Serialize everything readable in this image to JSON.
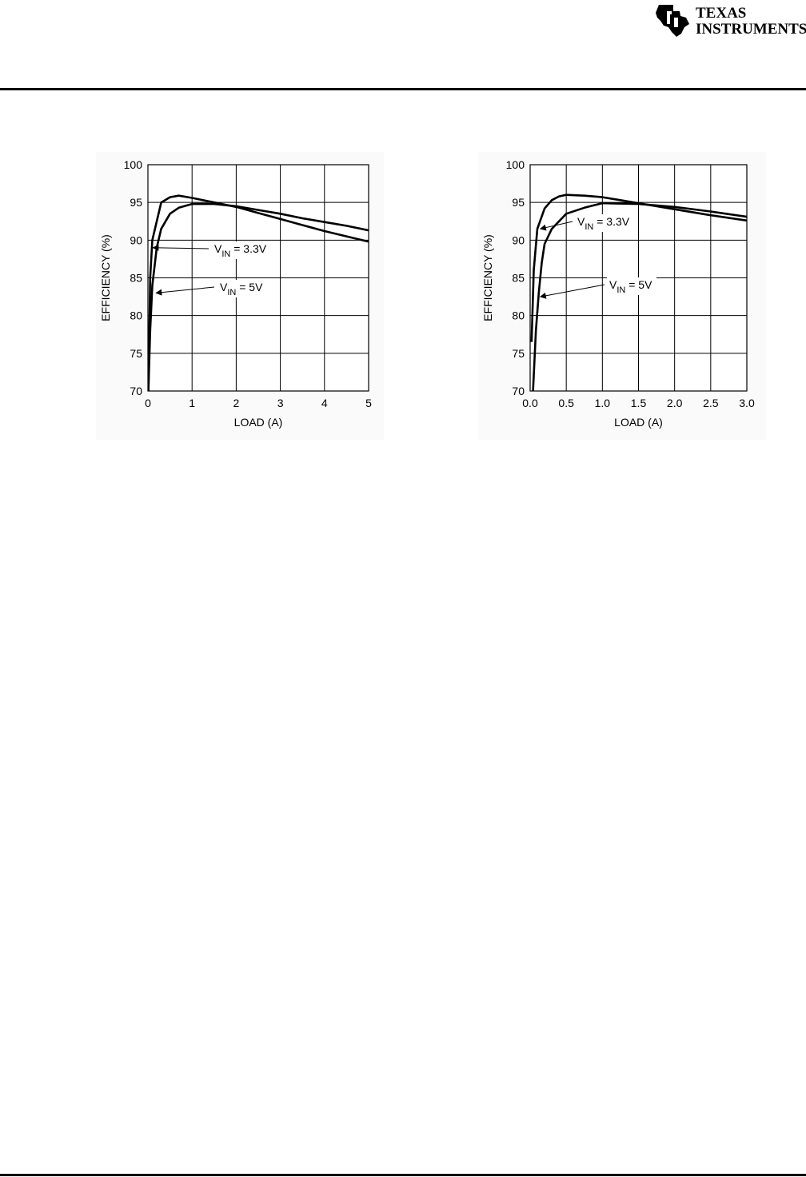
{
  "header": {
    "logo_line1": "Texas",
    "logo_line2": "Instruments",
    "logo_line1_display": "TEXAS",
    "logo_line2_display": "INSTRUMENTS"
  },
  "chart_data": [
    {
      "type": "line",
      "title": "",
      "xlabel": "LOAD (A)",
      "ylabel": "EFFICIENCY (%)",
      "xlim": [
        0,
        5
      ],
      "ylim": [
        70,
        100
      ],
      "x_ticks": [
        0,
        1,
        2,
        3,
        4,
        5
      ],
      "x_tick_labels": [
        "0",
        "1",
        "2",
        "3",
        "4",
        "5"
      ],
      "y_ticks": [
        70,
        75,
        80,
        85,
        90,
        95,
        100
      ],
      "y_tick_labels": [
        "70",
        "75",
        "80",
        "85",
        "90",
        "95",
        "100"
      ],
      "grid": true,
      "series": [
        {
          "name": "VIN = 3.3V",
          "annotation": {
            "main": "V",
            "sub": "IN",
            "rest": " = 3.3V",
            "x": 0.08,
            "y": 89
          },
          "x": [
            0.01,
            0.05,
            0.1,
            0.3,
            0.5,
            0.7,
            1.0,
            1.5,
            2.0,
            2.5,
            3.0,
            3.5,
            4.0,
            4.5,
            5.0
          ],
          "y": [
            70,
            85,
            90,
            95,
            95.7,
            95.9,
            95.6,
            95.0,
            94.4,
            93.6,
            92.8,
            92.0,
            91.2,
            90.5,
            89.8
          ]
        },
        {
          "name": "VIN = 5V",
          "annotation": {
            "main": "V",
            "sub": "IN",
            "rest": " = 5V",
            "x": 0.15,
            "y": 83
          },
          "x": [
            0.01,
            0.05,
            0.1,
            0.2,
            0.3,
            0.5,
            0.7,
            1.0,
            1.5,
            2.0,
            2.5,
            3.0,
            3.5,
            4.0,
            4.5,
            5.0
          ],
          "y": [
            70,
            78,
            84,
            89,
            91.5,
            93.5,
            94.3,
            94.8,
            94.8,
            94.5,
            94.0,
            93.5,
            92.9,
            92.4,
            91.9,
            91.3
          ]
        }
      ]
    },
    {
      "type": "line",
      "title": "",
      "xlabel": "LOAD (A)",
      "ylabel": "EFFICIENCY (%)",
      "xlim": [
        0,
        3.0
      ],
      "ylim": [
        70,
        100
      ],
      "x_ticks": [
        0,
        0.5,
        1.0,
        1.5,
        2.0,
        2.5,
        3.0
      ],
      "x_tick_labels": [
        "0.0",
        "0.5",
        "1.0",
        "1.5",
        "2.0",
        "2.5",
        "3.0"
      ],
      "y_ticks": [
        70,
        75,
        80,
        85,
        90,
        95,
        100
      ],
      "y_tick_labels": [
        "70",
        "75",
        "80",
        "85",
        "90",
        "95",
        "100"
      ],
      "grid": true,
      "series": [
        {
          "name": "VIN = 3.3V",
          "annotation": {
            "main": "V",
            "sub": "IN",
            "rest": " = 3.3V",
            "x": 0.12,
            "y": 91.5
          },
          "x": [
            0.02,
            0.05,
            0.1,
            0.2,
            0.3,
            0.4,
            0.5,
            0.75,
            1.0,
            1.25,
            1.5,
            2.0,
            2.5,
            3.0
          ],
          "y": [
            76.5,
            86,
            91.5,
            94.2,
            95.3,
            95.8,
            96.0,
            95.9,
            95.7,
            95.3,
            94.9,
            94.1,
            93.3,
            92.6
          ]
        },
        {
          "name": "VIN = 5V",
          "annotation": {
            "main": "V",
            "sub": "IN",
            "rest": " = 5V",
            "x": 0.12,
            "y": 82.5
          },
          "x": [
            0.04,
            0.08,
            0.12,
            0.16,
            0.2,
            0.3,
            0.5,
            0.75,
            1.0,
            1.5,
            2.0,
            2.5,
            3.0
          ],
          "y": [
            70,
            78,
            83,
            87,
            89.5,
            91.5,
            93.5,
            94.3,
            94.9,
            94.8,
            94.4,
            93.8,
            93.1
          ]
        }
      ]
    }
  ]
}
